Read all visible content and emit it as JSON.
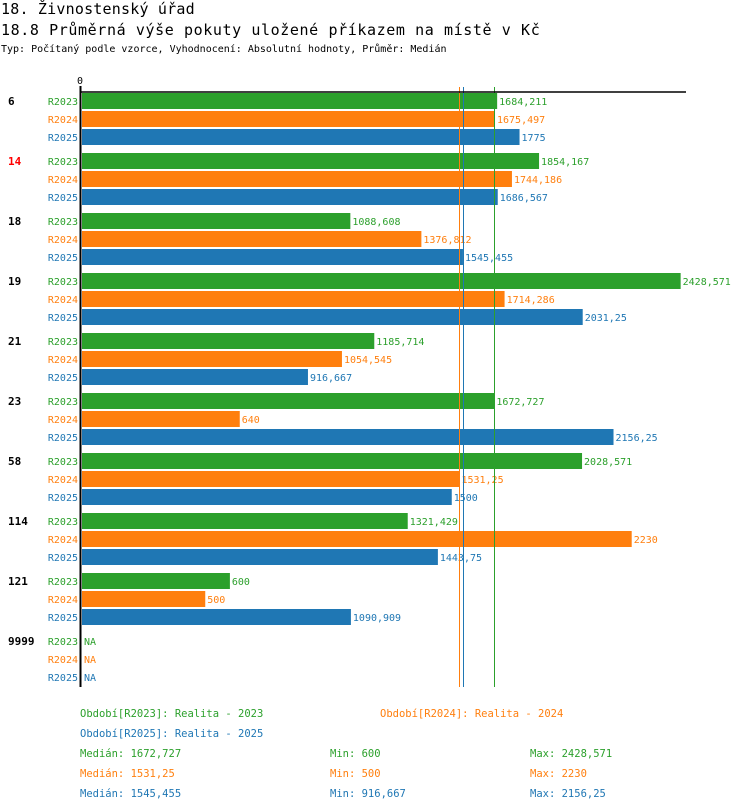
{
  "header": {
    "section_title": "18. Živnostenský úřad",
    "chart_title": "18.8 Průměrná výše pokuty uložené příkazem na místě v Kč",
    "subtitle": "Typ: Počítaný podle vzorce, Vyhodnocení: Absolutní hodnoty, Průměr: Medián"
  },
  "colors": {
    "R2023": "#2ca02c",
    "R2024": "#ff7f0e",
    "R2025": "#1f77b4",
    "highlight_category": "#ff0000",
    "default_category": "#000000",
    "axis": "#000000"
  },
  "chart_data": {
    "type": "bar",
    "orientation": "horizontal",
    "title": "18.8 Průměrná výše pokuty uložené příkazem na místě v Kč",
    "xlabel": "",
    "ylabel": "",
    "x_axis_tick_labels": [
      "0"
    ],
    "xlim": [
      0,
      2468
    ],
    "grid": false,
    "categories": [
      "6",
      "14",
      "18",
      "19",
      "21",
      "23",
      "58",
      "114",
      "121",
      "9999"
    ],
    "highlighted_category": "14",
    "series": [
      {
        "name": "R2023",
        "values": [
          1684.211,
          1854.167,
          1088.608,
          2428.571,
          1185.714,
          1672.727,
          2028.571,
          1321.429,
          600,
          null
        ],
        "labels": [
          "1684,211",
          "1854,167",
          "1088,608",
          "2428,571",
          "1185,714",
          "1672,727",
          "2028,571",
          "1321,429",
          "600",
          "NA"
        ]
      },
      {
        "name": "R2024",
        "values": [
          1675.497,
          1744.186,
          1376.812,
          1714.286,
          1054.545,
          640,
          1531.25,
          2230,
          500,
          null
        ],
        "labels": [
          "1675,497",
          "1744,186",
          "1376,812",
          "1714,286",
          "1054,545",
          "640",
          "1531,25",
          "2230",
          "500",
          "NA"
        ]
      },
      {
        "name": "R2025",
        "values": [
          1775,
          1686.567,
          1545.455,
          2031.25,
          916.667,
          2156.25,
          1500,
          1443.75,
          1090.909,
          null
        ],
        "labels": [
          "1775",
          "1686,567",
          "1545,455",
          "2031,25",
          "916,667",
          "2156,25",
          "1500",
          "1443,75",
          "1090,909",
          "NA"
        ]
      }
    ],
    "reference_lines": [
      {
        "series": "R2023",
        "type": "median",
        "value": 1672.727
      },
      {
        "series": "R2024",
        "type": "median",
        "value": 1531.25
      },
      {
        "series": "R2025",
        "type": "median",
        "value": 1545.455
      }
    ],
    "legend_position": "bottom"
  },
  "legend": {
    "periods": [
      {
        "series": "R2023",
        "text": "Období[R2023]: Realita - 2023"
      },
      {
        "series": "R2024",
        "text": "Období[R2024]: Realita - 2024"
      },
      {
        "series": "R2025",
        "text": "Období[R2025]: Realita - 2025"
      }
    ],
    "stats": [
      {
        "series": "R2023",
        "median": "Medián: 1672,727",
        "min": "Min: 600",
        "max": "Max: 2428,571"
      },
      {
        "series": "R2024",
        "median": "Medián: 1531,25",
        "min": "Min: 500",
        "max": "Max: 2230"
      },
      {
        "series": "R2025",
        "median": "Medián: 1545,455",
        "min": "Min: 916,667",
        "max": "Max: 2156,25"
      }
    ]
  }
}
